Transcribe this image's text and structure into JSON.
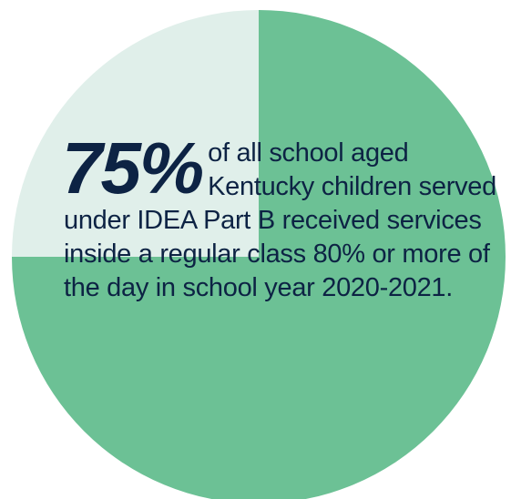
{
  "chart_data": {
    "type": "pie",
    "title": "",
    "slices": [
      {
        "value": 75,
        "color": "#6cc195"
      },
      {
        "value": 25,
        "color": "#e0efea"
      }
    ],
    "label": {
      "big_value": "75%",
      "text": "of all school aged Kentucky children served under IDEA Part B received services inside a regular class 80% or more of the day in school year 2020-2021."
    }
  }
}
